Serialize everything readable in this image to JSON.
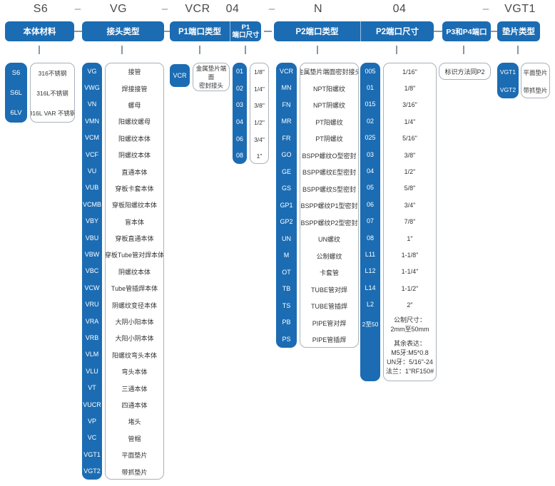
{
  "top_codes": [
    "S6",
    "–",
    "VG",
    "–",
    "VCR",
    "04",
    "–",
    "N",
    "04",
    "–",
    "VGT1"
  ],
  "headers": {
    "body_material": "本体材料",
    "connector_type": "接头类型",
    "p1_type": "P1端口类型",
    "p1_size": "P1\n端口尺寸",
    "p2_type": "P2端口类型",
    "p2_size": "P2端口尺寸",
    "p3_p4": "P3和P4端口",
    "gasket_type": "垫片类型"
  },
  "body_material": {
    "items": [
      {
        "code": "S6",
        "label": "316不锈钢"
      },
      {
        "code": "S6L",
        "label": "316L不锈钢"
      },
      {
        "code": "6LV",
        "label": "316L VAR 不锈钢"
      }
    ]
  },
  "connector_type": {
    "items": [
      {
        "code": "VG",
        "label": "接管"
      },
      {
        "code": "VWG",
        "label": "焊接接管"
      },
      {
        "code": "VN",
        "label": "螺母"
      },
      {
        "code": "VMN",
        "label": "阳螺纹螺母"
      },
      {
        "code": "VCM",
        "label": "阳螺纹本体"
      },
      {
        "code": "VCF",
        "label": "阴螺纹本体"
      },
      {
        "code": "VU",
        "label": "直通本体"
      },
      {
        "code": "VUB",
        "label": "穿板卡套本体"
      },
      {
        "code": "VCMB",
        "label": "穿板阳螺纹本体"
      },
      {
        "code": "VBY",
        "label": "盲本体"
      },
      {
        "code": "VBU",
        "label": "穿板直通本体"
      },
      {
        "code": "VBW",
        "label": "穿板Tube管对焊本体"
      },
      {
        "code": "VBC",
        "label": "阴螺纹本体"
      },
      {
        "code": "VCW",
        "label": "Tube管插焊本体"
      },
      {
        "code": "VRU",
        "label": "阴螺纹变径本体"
      },
      {
        "code": "VRA",
        "label": "大阴小阳本体"
      },
      {
        "code": "VRB",
        "label": "大阳小阴本体"
      },
      {
        "code": "VLM",
        "label": "阳螺纹弯头本体"
      },
      {
        "code": "VLU",
        "label": "弯头本体"
      },
      {
        "code": "VT",
        "label": "三通本体"
      },
      {
        "code": "VUCR",
        "label": "四通本体"
      },
      {
        "code": "VP",
        "label": "堵头"
      },
      {
        "code": "VC",
        "label": "管帽"
      },
      {
        "code": "VGT1",
        "label": "平面垫片"
      },
      {
        "code": "VGT2",
        "label": "带抓垫片"
      }
    ]
  },
  "p1_type": {
    "code": "VCR",
    "label": "金属垫片端面\n密封接头"
  },
  "p1_size": {
    "items": [
      {
        "code": "01",
        "label": "1/8\""
      },
      {
        "code": "02",
        "label": "1/4\""
      },
      {
        "code": "03",
        "label": "3/8\""
      },
      {
        "code": "04",
        "label": "1/2\""
      },
      {
        "code": "06",
        "label": "3/4\""
      },
      {
        "code": "08",
        "label": "1\""
      }
    ]
  },
  "p2_type": {
    "items": [
      {
        "code": "VCR",
        "label": "金属垫片端面密封接头"
      },
      {
        "code": "MN",
        "label": "NPT阳螺纹"
      },
      {
        "code": "FN",
        "label": "NPT阴螺纹"
      },
      {
        "code": "MR",
        "label": "PT阳螺纹"
      },
      {
        "code": "FR",
        "label": "PT阴螺纹"
      },
      {
        "code": "GO",
        "label": "BSPP螺纹O型密封"
      },
      {
        "code": "GE",
        "label": "BSPP螺纹E型密封"
      },
      {
        "code": "GS",
        "label": "BSPP螺纹S型密封"
      },
      {
        "code": "GP1",
        "label": "BSPP螺纹P1型密封"
      },
      {
        "code": "GP2",
        "label": "BSPP螺纹P2型密封"
      },
      {
        "code": "UN",
        "label": "UN螺纹"
      },
      {
        "code": "M",
        "label": "公制螺纹"
      },
      {
        "code": "OT",
        "label": "卡套管"
      },
      {
        "code": "TB",
        "label": "TUBE管对焊"
      },
      {
        "code": "TS",
        "label": "TUBE管插焊"
      },
      {
        "code": "PB",
        "label": "PIPE管对焊"
      },
      {
        "code": "PS",
        "label": "PIPE管插焊"
      }
    ]
  },
  "p2_size": {
    "items": [
      {
        "code": "005",
        "label": "1/16\""
      },
      {
        "code": "01",
        "label": "1/8\""
      },
      {
        "code": "015",
        "label": "3/16\""
      },
      {
        "code": "02",
        "label": "1/4\""
      },
      {
        "code": "025",
        "label": "5/16\""
      },
      {
        "code": "03",
        "label": "3/8\""
      },
      {
        "code": "04",
        "label": "1/2\""
      },
      {
        "code": "05",
        "label": "5/8\""
      },
      {
        "code": "06",
        "label": "3/4\""
      },
      {
        "code": "07",
        "label": "7/8\""
      },
      {
        "code": "08",
        "label": "1\""
      },
      {
        "code": "L11",
        "label": "1-1/8\""
      },
      {
        "code": "L12",
        "label": "1-1/4\""
      },
      {
        "code": "L14",
        "label": "1-1/2\""
      },
      {
        "code": "L2",
        "label": "2\""
      }
    ],
    "metric": {
      "code": "2至50",
      "label": "公制尺寸：\n2mm至50mm"
    },
    "note": "其余表达：\nM5牙:M5*0.8\nUN牙：5/16\"-24\n法兰：1\"RF150#"
  },
  "p3_p4": {
    "note": "标识方法同P2"
  },
  "gasket_type": {
    "items": [
      {
        "code": "VGT1",
        "label": "平面垫片"
      },
      {
        "code": "VGT2",
        "label": "带抓垫片"
      }
    ]
  }
}
